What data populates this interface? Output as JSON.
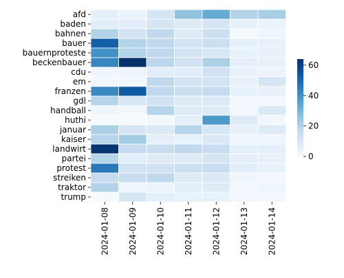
{
  "chart_data": {
    "type": "heatmap",
    "title": "",
    "xlabel": "",
    "ylabel": "",
    "x": [
      "2024-01-08",
      "2024-01-09",
      "2024-01-10",
      "2024-01-11",
      "2024-01-12",
      "2024-01-13",
      "2024-01-14"
    ],
    "y": [
      "afd",
      "baden",
      "bahnen",
      "bauer",
      "bauernproteste",
      "beckenbauer",
      "cdu",
      "em",
      "franzen",
      "gdl",
      "handball",
      "huthi",
      "januar",
      "kaiser",
      "landwirt",
      "partei",
      "protest",
      "streiken",
      "traktor",
      "trump"
    ],
    "values": [
      [
        6,
        4,
        11,
        26,
        33,
        20,
        22
      ],
      [
        7,
        7,
        11,
        8,
        11,
        5,
        4
      ],
      [
        20,
        12,
        17,
        8,
        14,
        1,
        3
      ],
      [
        52,
        20,
        17,
        12,
        14,
        6,
        5
      ],
      [
        40,
        20,
        17,
        12,
        10,
        5,
        5
      ],
      [
        43,
        64,
        18,
        12,
        21,
        6,
        5
      ],
      [
        3,
        3,
        7,
        7,
        13,
        5,
        4
      ],
      [
        2,
        2,
        17,
        12,
        12,
        5,
        11
      ],
      [
        42,
        54,
        17,
        14,
        16,
        5,
        5
      ],
      [
        19,
        10,
        13,
        8,
        9,
        2,
        2
      ],
      [
        3,
        2,
        19,
        8,
        8,
        2,
        9
      ],
      [
        1,
        1,
        2,
        6,
        38,
        8,
        2
      ],
      [
        21,
        11,
        9,
        19,
        10,
        5,
        8
      ],
      [
        19,
        23,
        6,
        5,
        9,
        3,
        3
      ],
      [
        63,
        16,
        15,
        17,
        15,
        6,
        6
      ],
      [
        19,
        7,
        8,
        8,
        11,
        6,
        5
      ],
      [
        46,
        13,
        13,
        14,
        15,
        7,
        5
      ],
      [
        16,
        15,
        17,
        8,
        9,
        3,
        2
      ],
      [
        20,
        3,
        4,
        7,
        8,
        2,
        3
      ],
      [
        1,
        11,
        6,
        5,
        5,
        2,
        2
      ]
    ],
    "vmin": 0,
    "vmax": 64,
    "colormap": "Blues",
    "colorbar_ticks": [
      0,
      20,
      40,
      60
    ],
    "grid": true
  }
}
